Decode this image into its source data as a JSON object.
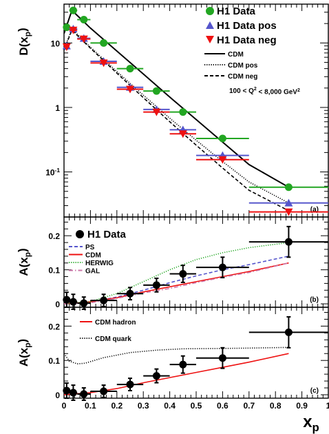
{
  "chart_data": [
    {
      "panel": "a",
      "type": "scatter",
      "ylabel": "D(x_p)",
      "yscale": "log",
      "ylim": [
        0.02,
        40
      ],
      "xlim": [
        0,
        1
      ],
      "yticks": [
        "10",
        "1",
        "10^-1"
      ],
      "tag": "(a)",
      "legend_position": "top-right",
      "annotation": "100 < Q^2 < 8,000 GeV^2",
      "series": [
        {
          "name": "H1 Data",
          "marker": "circle",
          "color": "#22a622",
          "points": [
            {
              "x": 0.01,
              "y": 17.5,
              "xerr": 0.01
            },
            {
              "x": 0.035,
              "y": 32,
              "xerr": 0.015
            },
            {
              "x": 0.075,
              "y": 23,
              "xerr": 0.025
            },
            {
              "x": 0.15,
              "y": 10,
              "xerr": 0.05
            },
            {
              "x": 0.25,
              "y": 4,
              "xerr": 0.05
            },
            {
              "x": 0.35,
              "y": 1.8,
              "xerr": 0.05
            },
            {
              "x": 0.45,
              "y": 0.85,
              "xerr": 0.05
            },
            {
              "x": 0.6,
              "y": 0.33,
              "xerr": 0.1
            },
            {
              "x": 0.85,
              "y": 0.058,
              "xerr": 0.15
            }
          ]
        },
        {
          "name": "H1 Data pos",
          "marker": "triangle-up",
          "color": "#5555cc",
          "points": [
            {
              "x": 0.01,
              "y": 9,
              "xerr": 0.01
            },
            {
              "x": 0.035,
              "y": 16.5,
              "xerr": 0.015
            },
            {
              "x": 0.075,
              "y": 11.8,
              "xerr": 0.025
            },
            {
              "x": 0.15,
              "y": 5.2,
              "xerr": 0.05
            },
            {
              "x": 0.25,
              "y": 2.05,
              "xerr": 0.05
            },
            {
              "x": 0.35,
              "y": 0.93,
              "xerr": 0.05
            },
            {
              "x": 0.45,
              "y": 0.45,
              "xerr": 0.05
            },
            {
              "x": 0.6,
              "y": 0.18,
              "xerr": 0.1
            },
            {
              "x": 0.85,
              "y": 0.033,
              "xerr": 0.15
            }
          ]
        },
        {
          "name": "H1 Data neg",
          "marker": "triangle-down",
          "color": "#ee1111",
          "points": [
            {
              "x": 0.01,
              "y": 8.7,
              "xerr": 0.01
            },
            {
              "x": 0.035,
              "y": 15.8,
              "xerr": 0.015
            },
            {
              "x": 0.075,
              "y": 11.5,
              "xerr": 0.025
            },
            {
              "x": 0.15,
              "y": 4.9,
              "xerr": 0.05
            },
            {
              "x": 0.25,
              "y": 1.92,
              "xerr": 0.05
            },
            {
              "x": 0.35,
              "y": 0.85,
              "xerr": 0.05
            },
            {
              "x": 0.45,
              "y": 0.39,
              "xerr": 0.05
            },
            {
              "x": 0.6,
              "y": 0.155,
              "xerr": 0.1
            },
            {
              "x": 0.85,
              "y": 0.024,
              "xerr": 0.15
            }
          ]
        }
      ],
      "curves": [
        {
          "name": "CDM",
          "style": "solid",
          "color": "#000000",
          "x": [
            0.0,
            0.03,
            0.1,
            0.2,
            0.3,
            0.4,
            0.5,
            0.6,
            0.7,
            0.85
          ],
          "y": [
            14,
            32,
            17,
            7.5,
            3.3,
            1.45,
            0.65,
            0.29,
            0.13,
            0.058
          ]
        },
        {
          "name": "CDM pos",
          "style": "dotted",
          "color": "#000000",
          "x": [
            0.0,
            0.03,
            0.1,
            0.2,
            0.3,
            0.4,
            0.5,
            0.6,
            0.7,
            0.85
          ],
          "y": [
            8,
            16.5,
            8.6,
            3.6,
            1.55,
            0.68,
            0.31,
            0.145,
            0.07,
            0.033
          ]
        },
        {
          "name": "CDM neg",
          "style": "dashed",
          "color": "#000000",
          "x": [
            0.0,
            0.03,
            0.1,
            0.2,
            0.3,
            0.4,
            0.5,
            0.6,
            0.7,
            0.85
          ],
          "y": [
            7.8,
            15.8,
            8.3,
            3.4,
            1.42,
            0.6,
            0.26,
            0.115,
            0.052,
            0.025
          ]
        }
      ]
    },
    {
      "panel": "b",
      "type": "scatter",
      "ylabel": "A(x_p)",
      "ylim": [
        -0.01,
        0.255
      ],
      "xlim": [
        0,
        1
      ],
      "yticks": [
        0,
        0.1,
        0.2
      ],
      "tag": "(b)",
      "legend_position": "top-left",
      "series": [
        {
          "name": "H1 Data",
          "marker": "circle",
          "color": "#000000",
          "points": [
            {
              "x": 0.01,
              "y": 0.012,
              "xerr": 0.01,
              "yerr": 0.022
            },
            {
              "x": 0.035,
              "y": 0.006,
              "xerr": 0.015,
              "yerr": 0.022
            },
            {
              "x": 0.075,
              "y": 0.002,
              "xerr": 0.025,
              "yerr": 0.018
            },
            {
              "x": 0.15,
              "y": 0.01,
              "xerr": 0.05,
              "yerr": 0.018
            },
            {
              "x": 0.25,
              "y": 0.03,
              "xerr": 0.05,
              "yerr": 0.018
            },
            {
              "x": 0.35,
              "y": 0.055,
              "xerr": 0.05,
              "yerr": 0.02
            },
            {
              "x": 0.45,
              "y": 0.088,
              "xerr": 0.05,
              "yerr": 0.025
            },
            {
              "x": 0.6,
              "y": 0.107,
              "xerr": 0.1,
              "yerr": 0.03
            },
            {
              "x": 0.85,
              "y": 0.182,
              "xerr": 0.15,
              "yerr": 0.045
            }
          ]
        }
      ],
      "curves": [
        {
          "name": "PS",
          "style": "dashed",
          "color": "#5555cc",
          "x": [
            0.0,
            0.1,
            0.2,
            0.3,
            0.4,
            0.5,
            0.6,
            0.7,
            0.85
          ],
          "y": [
            0.0,
            0.005,
            0.02,
            0.04,
            0.062,
            0.082,
            0.1,
            0.115,
            0.14
          ]
        },
        {
          "name": "CDM",
          "style": "solid",
          "color": "#ee1111",
          "x": [
            0.0,
            0.1,
            0.2,
            0.3,
            0.4,
            0.5,
            0.6,
            0.7,
            0.85
          ],
          "y": [
            0.0,
            0.006,
            0.018,
            0.035,
            0.05,
            0.065,
            0.08,
            0.095,
            0.12
          ]
        },
        {
          "name": "HERWIG",
          "style": "dotted",
          "color": "#22a622",
          "x": [
            0.0,
            0.1,
            0.2,
            0.3,
            0.4,
            0.5,
            0.6,
            0.7,
            0.85
          ],
          "y": [
            0.0,
            0.007,
            0.03,
            0.065,
            0.1,
            0.13,
            0.15,
            0.165,
            0.18
          ]
        },
        {
          "name": "GAL",
          "style": "dashdot",
          "color": "#cc77aa",
          "x": [
            0.0,
            0.1,
            0.2,
            0.3,
            0.4,
            0.5,
            0.6,
            0.7,
            0.85
          ],
          "y": [
            0.0,
            0.003,
            0.016,
            0.032,
            0.045,
            0.062,
            0.078,
            0.092,
            0.12
          ]
        }
      ]
    },
    {
      "panel": "c",
      "type": "scatter",
      "ylabel": "A(x_p)",
      "ylim": [
        -0.01,
        0.255
      ],
      "xlim": [
        0,
        1
      ],
      "xlabel": "x_p",
      "yticks": [
        0,
        0.1,
        0.2
      ],
      "xticks": [
        0,
        0.1,
        0.2,
        0.3,
        0.4,
        0.5,
        0.6,
        0.7,
        0.8,
        0.9,
        1
      ],
      "tag": "(c)",
      "legend_position": "top-left",
      "series": [
        {
          "name": "H1 Data",
          "marker": "circle",
          "color": "#000000",
          "points": [
            {
              "x": 0.01,
              "y": 0.012,
              "xerr": 0.01,
              "yerr": 0.022
            },
            {
              "x": 0.035,
              "y": 0.006,
              "xerr": 0.015,
              "yerr": 0.022
            },
            {
              "x": 0.075,
              "y": 0.002,
              "xerr": 0.025,
              "yerr": 0.018
            },
            {
              "x": 0.15,
              "y": 0.01,
              "xerr": 0.05,
              "yerr": 0.018
            },
            {
              "x": 0.25,
              "y": 0.03,
              "xerr": 0.05,
              "yerr": 0.018
            },
            {
              "x": 0.35,
              "y": 0.055,
              "xerr": 0.05,
              "yerr": 0.02
            },
            {
              "x": 0.45,
              "y": 0.088,
              "xerr": 0.05,
              "yerr": 0.025
            },
            {
              "x": 0.6,
              "y": 0.107,
              "xerr": 0.1,
              "yerr": 0.03
            },
            {
              "x": 0.85,
              "y": 0.182,
              "xerr": 0.15,
              "yerr": 0.045
            }
          ]
        }
      ],
      "curves": [
        {
          "name": "CDM hadron",
          "style": "solid",
          "color": "#ee1111",
          "x": [
            0.0,
            0.1,
            0.2,
            0.3,
            0.4,
            0.5,
            0.6,
            0.7,
            0.85
          ],
          "y": [
            0.0,
            0.006,
            0.018,
            0.035,
            0.05,
            0.065,
            0.08,
            0.095,
            0.12
          ]
        },
        {
          "name": "CDM quark",
          "style": "dotted",
          "color": "#000000",
          "x": [
            0.0,
            0.02,
            0.05,
            0.08,
            0.15,
            0.25,
            0.35,
            0.45,
            0.6,
            0.7,
            0.85
          ],
          "y": [
            0.12,
            0.098,
            0.09,
            0.092,
            0.108,
            0.123,
            0.13,
            0.134,
            0.135,
            0.136,
            0.138
          ]
        }
      ]
    }
  ]
}
